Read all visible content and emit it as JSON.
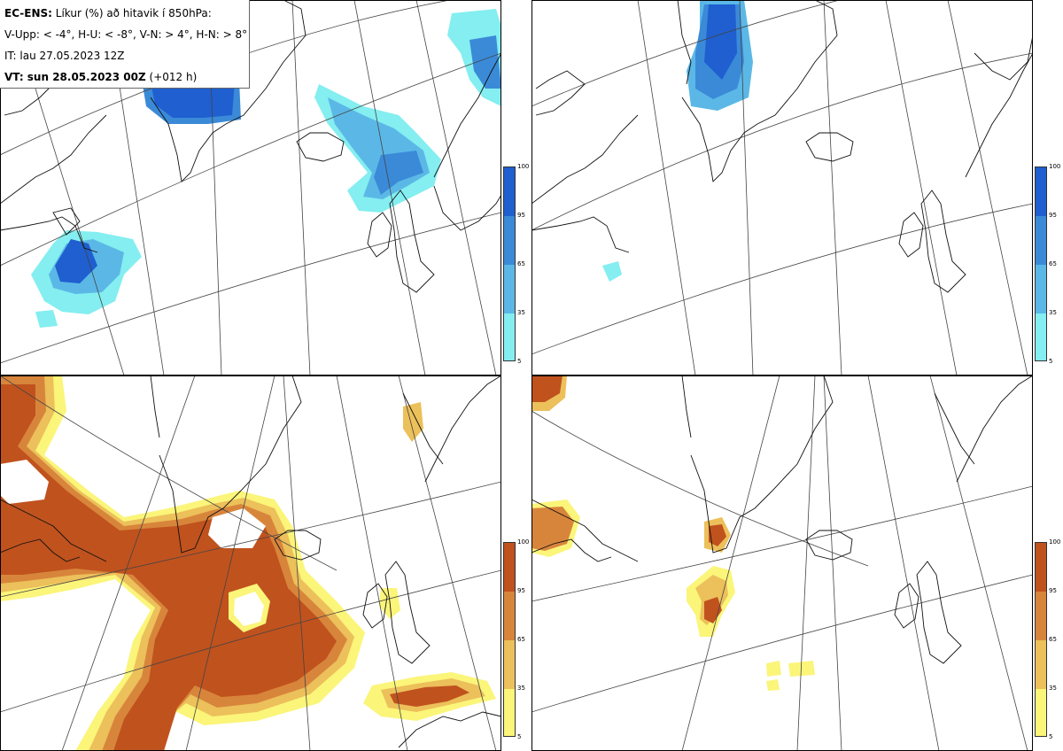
{
  "info": {
    "product": "EC-ENS:",
    "title_rest": "Líkur (%) að hitavik í 850hPa:",
    "definitions": "V-Upp: < -4°, H-U: < -8°, V-N: > 4°, H-N: > 8°",
    "init_time": "IT: lau 27.05.2023 12Z",
    "valid_label": "VT: sun 28.05.2023 00Z",
    "lead": "(+012 h)"
  },
  "colorbar_cold": {
    "ticks": [
      "100",
      "95",
      "65",
      "35",
      "5"
    ],
    "colors": [
      "#1f5fd0",
      "#3b8ad8",
      "#5bb8e6",
      "#84eef0"
    ]
  },
  "colorbar_warm": {
    "ticks": [
      "100",
      "95",
      "65",
      "35",
      "5"
    ],
    "colors": [
      "#c0521e",
      "#d8853c",
      "#ecc05a",
      "#fbf57a"
    ]
  },
  "panels": [
    {
      "id": "top-left",
      "category": "V-Upp"
    },
    {
      "id": "top-right",
      "category": "H-U"
    },
    {
      "id": "bottom-left",
      "category": "V-N"
    },
    {
      "id": "bottom-right",
      "category": "H-N"
    }
  ]
}
